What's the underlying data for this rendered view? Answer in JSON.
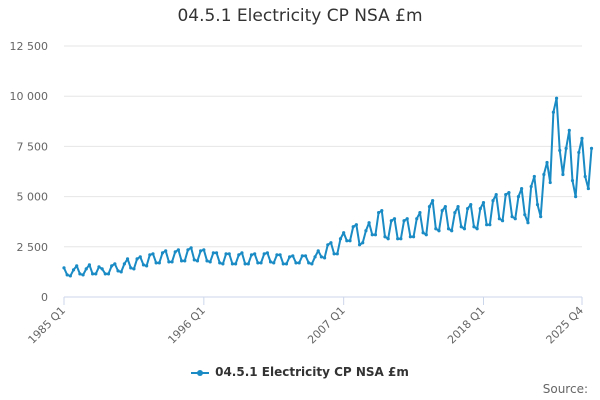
{
  "chart_data": {
    "type": "line",
    "title": "04.5.1 Electricity CP NSA £m",
    "xlabel": "",
    "ylabel": "",
    "ylim": [
      0,
      12500
    ],
    "yticks": [
      0,
      2500,
      5000,
      7500,
      10000,
      12500
    ],
    "ytick_labels": [
      "0",
      "2 500",
      "5 000",
      "7 500",
      "10 000",
      "12 500"
    ],
    "xtick_labels": [
      "1985 Q1",
      "1996 Q1",
      "2007 Q1",
      "2018 Q1",
      "2025 Q4"
    ],
    "xtick_index": [
      0,
      44,
      88,
      132,
      163
    ],
    "series": [
      {
        "name": "04.5.1 Electricity CP NSA £m",
        "color": "#1a8bc4",
        "start": "1985 Q1",
        "values": [
          1450,
          1100,
          1050,
          1350,
          1550,
          1150,
          1100,
          1400,
          1600,
          1150,
          1150,
          1500,
          1400,
          1150,
          1150,
          1550,
          1650,
          1300,
          1250,
          1650,
          1900,
          1450,
          1400,
          1900,
          2000,
          1600,
          1550,
          2100,
          2150,
          1700,
          1700,
          2200,
          2300,
          1750,
          1750,
          2250,
          2350,
          1800,
          1800,
          2350,
          2450,
          1850,
          1800,
          2300,
          2350,
          1800,
          1750,
          2200,
          2200,
          1700,
          1650,
          2150,
          2150,
          1650,
          1650,
          2100,
          2200,
          1650,
          1650,
          2100,
          2150,
          1700,
          1700,
          2150,
          2200,
          1750,
          1700,
          2100,
          2100,
          1650,
          1650,
          2000,
          2050,
          1700,
          1700,
          2050,
          2050,
          1700,
          1650,
          2000,
          2300,
          2000,
          1950,
          2600,
          2700,
          2150,
          2150,
          2900,
          3200,
          2800,
          2800,
          3500,
          3600,
          2600,
          2700,
          3300,
          3700,
          3100,
          3100,
          4200,
          4300,
          3000,
          2900,
          3800,
          3900,
          2900,
          2900,
          3800,
          3900,
          3000,
          3000,
          3900,
          4200,
          3200,
          3100,
          4500,
          4800,
          3400,
          3300,
          4300,
          4500,
          3400,
          3300,
          4200,
          4500,
          3500,
          3400,
          4400,
          4600,
          3500,
          3400,
          4400,
          4700,
          3600,
          3600,
          4800,
          5100,
          3900,
          3800,
          5100,
          5200,
          4000,
          3900,
          5000,
          5400,
          4100,
          3700,
          5500,
          6000,
          4600,
          4000,
          6100,
          6700,
          5700,
          9200,
          9900,
          7300,
          6100,
          7400,
          8300,
          5800,
          5000,
          7200,
          7900,
          6000,
          5400,
          7400
        ]
      }
    ]
  },
  "legend": {
    "label": "04.5.1 Electricity CP NSA £m"
  },
  "source": {
    "label": "Source:"
  }
}
